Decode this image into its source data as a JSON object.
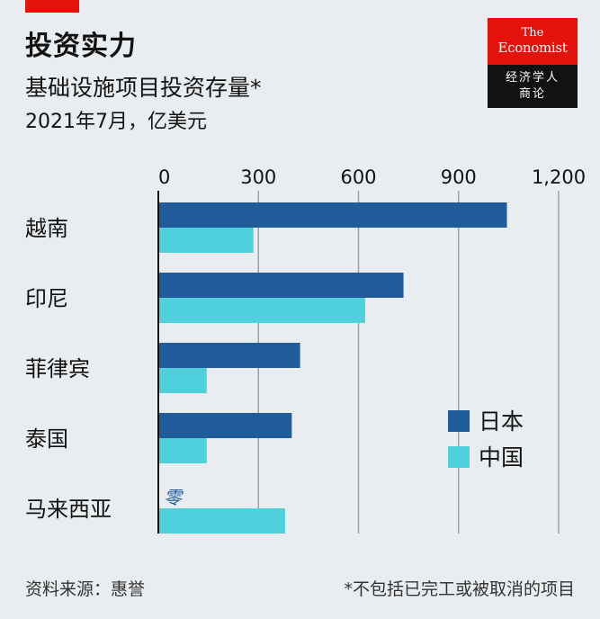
{
  "header": {
    "title": "投资实力",
    "subtitle": "基础设施项目投资存量*",
    "unit": "2021年7月，亿美元"
  },
  "logo": {
    "the": "The",
    "economist": "Economist",
    "cn_line1": "经济学人",
    "cn_line2": "商论"
  },
  "colors": {
    "japan": "#1f5c99",
    "china": "#4fd0dc",
    "brand_red": "#e3120b",
    "zero_label": "#1f5c99"
  },
  "chart_data": {
    "type": "bar",
    "orientation": "horizontal",
    "categories": [
      "越南",
      "印尼",
      "菲律宾",
      "泰国",
      "马来西亚"
    ],
    "series": [
      {
        "name": "日本",
        "values": [
          1045,
          735,
          425,
          400,
          0
        ]
      },
      {
        "name": "中国",
        "values": [
          285,
          620,
          145,
          145,
          380
        ]
      }
    ],
    "xticks": [
      "0",
      "300",
      "600",
      "900",
      "1,200"
    ],
    "xtick_values": [
      0,
      300,
      600,
      900,
      1200
    ],
    "xlim": [
      0,
      1200
    ],
    "grid": true,
    "legend_position": "center-right",
    "annotations": [
      {
        "category": "马来西亚",
        "series": "日本",
        "text": "零"
      }
    ]
  },
  "footer": {
    "source": "资料来源：惠誉",
    "note": "*不包括已完工或被取消的项目"
  }
}
